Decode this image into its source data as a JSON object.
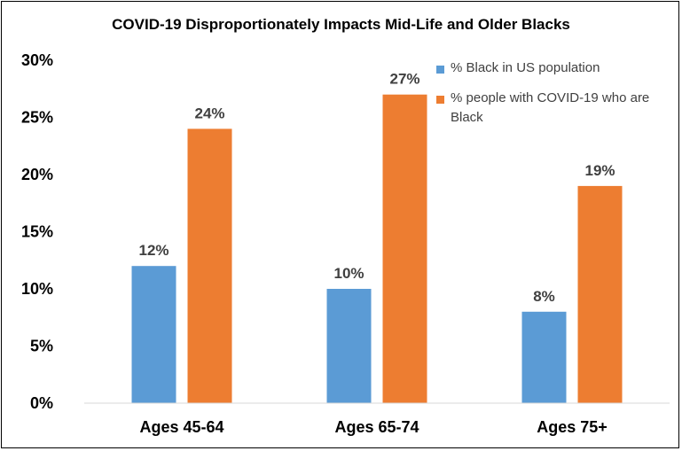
{
  "chart_data": {
    "type": "bar",
    "title": "COVID-19 Disproportionately Impacts Mid-Life and Older Blacks",
    "categories": [
      "Ages 45-64",
      "Ages 65-74",
      "Ages 75+"
    ],
    "series": [
      {
        "name": "% Black in US population",
        "values": [
          12,
          10,
          8
        ],
        "labels": [
          "12%",
          "10%",
          "8%"
        ],
        "color": "#5B9BD5"
      },
      {
        "name": "% people with COVID-19 who are Black",
        "values": [
          24,
          27,
          19
        ],
        "labels": [
          "24%",
          "27%",
          "19%"
        ],
        "color": "#ED7D31"
      }
    ],
    "ylim": [
      0,
      30
    ],
    "yticks": [
      "0%",
      "5%",
      "10%",
      "15%",
      "20%",
      "25%",
      "30%"
    ],
    "xlabel": "",
    "ylabel": "",
    "grid": false,
    "legend_position": "top-right"
  }
}
